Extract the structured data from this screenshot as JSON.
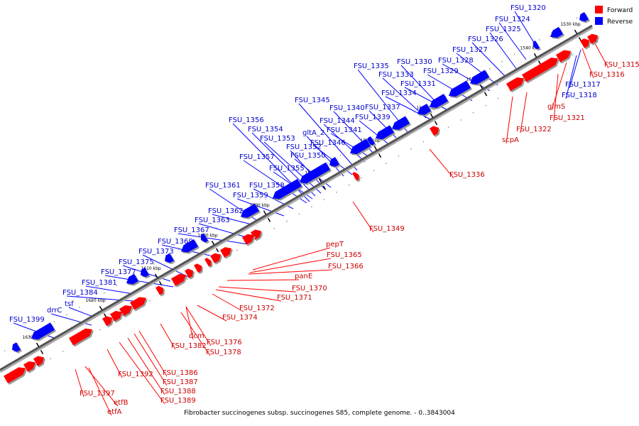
{
  "caption": "Fibrobacter succinogenes subsp. succinogenes S85, complete genome. - 0..3843004",
  "legend": {
    "forward_label": "Forward",
    "reverse_label": "Reverse",
    "forward_color": "#ff0000",
    "reverse_color": "#0000ff"
  },
  "colors": {
    "forward": "#ff0000",
    "reverse": "#0000ff",
    "forward_label": "#cc0000",
    "reverse_label": "#0000cc"
  },
  "ticks": [
    "1530 kbp",
    "1540 kbp",
    "1550 kbp",
    "1560 kbp",
    "1570 kbp",
    "1580 kbp",
    "1590 kbp",
    "1600 kbp",
    "1610 kbp",
    "1620 kbp",
    "1630 kbp"
  ],
  "genes": {
    "reverse": [
      "FSU_1320",
      "FSU_1324",
      "FSU_1325",
      "FSU_1326",
      "FSU_1327",
      "FSU_1328",
      "FSU_1329",
      "FSU_1330",
      "FSU_1331",
      "FSU_1333",
      "FSU_1334",
      "FSU_1335",
      "FSU_1337",
      "FSU_1339",
      "FSU_1340",
      "FSU_1341",
      "FSU_1344",
      "FSU_1345",
      "gltA_2",
      "FSU_1346",
      "FSU_1350",
      "FSU_1352",
      "FSU_1353",
      "FSU_1354",
      "FSU_1355",
      "FSU_1356",
      "FSU_1357",
      "FSU_1358",
      "FSU_1359",
      "FSU_1361",
      "FSU_1362",
      "FSU_1363",
      "FSU_1367",
      "FSU_1369",
      "FSU_1373",
      "FSU_1375",
      "FSU_1377",
      "FSU_1381",
      "FSU_1384",
      "tsf",
      "drrC",
      "FSU_1399",
      "FSU_1317",
      "FSU_1318"
    ],
    "forward": [
      "FSU_1315",
      "FSU_1316",
      "glmS",
      "FSU_1321",
      "FSU_1322",
      "scpA",
      "FSU_1336",
      "FSU_1349",
      "pepT",
      "FSU_1365",
      "FSU_1366",
      "panE",
      "FSU_1370",
      "FSU_1371",
      "FSU_1372",
      "FSU_1374",
      "FSU_1376",
      "dcm",
      "FSU_1378",
      "FSU_1382",
      "FSU_1386",
      "FSU_1387",
      "FSU_1388",
      "FSU_1389",
      "FSU_1392",
      "FSU_1397",
      "etfB",
      "etfA"
    ]
  }
}
